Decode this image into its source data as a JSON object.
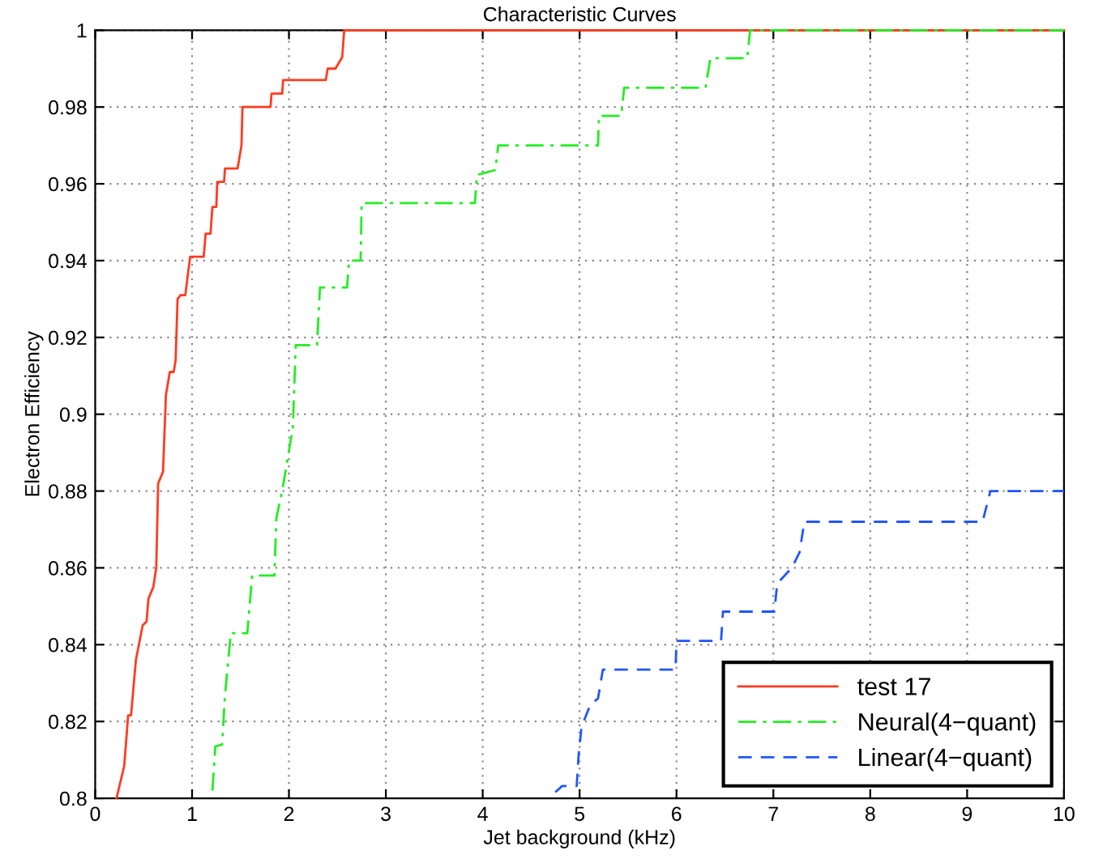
{
  "chart_data": {
    "type": "line",
    "title": "Characteristic Curves",
    "xlabel": "Jet background (kHz)",
    "ylabel": "Electron Efficiency",
    "xlim": [
      0,
      10
    ],
    "xticks": [
      0,
      1,
      2,
      3,
      4,
      5,
      6,
      7,
      8,
      9,
      10
    ],
    "ylim": [
      0.8,
      1
    ],
    "yticks": [
      0.8,
      0.82,
      0.84,
      0.86,
      0.88,
      0.9,
      0.92,
      0.94,
      0.96,
      0.98,
      1
    ],
    "grid": true,
    "legend": "bottom right",
    "marker": "none",
    "series": [
      {
        "name": "test 17",
        "color": "#ff3b1f",
        "line_style": "solid",
        "x": [
          0.22,
          0.3,
          0.34,
          0.37,
          0.42,
          0.49,
          0.53,
          0.55,
          0.6,
          0.63,
          0.65,
          0.7,
          0.73,
          0.77,
          0.81,
          0.83,
          0.85,
          0.88,
          0.93,
          0.98,
          1.12,
          1.14,
          1.19,
          1.21,
          1.25,
          1.26,
          1.33,
          1.34,
          1.47,
          1.49,
          1.51,
          1.52,
          1.81,
          1.82,
          1.93,
          1.94,
          2.38,
          2.4,
          2.48,
          2.55,
          2.57,
          10
        ],
        "values": [
          0.8,
          0.8085,
          0.8216,
          0.8216,
          0.836,
          0.845,
          0.846,
          0.852,
          0.855,
          0.86,
          0.882,
          0.885,
          0.905,
          0.911,
          0.911,
          0.914,
          0.93,
          0.931,
          0.931,
          0.941,
          0.941,
          0.947,
          0.947,
          0.954,
          0.954,
          0.9605,
          0.9605,
          0.964,
          0.964,
          0.967,
          0.97,
          0.98,
          0.98,
          0.9835,
          0.9835,
          0.987,
          0.987,
          0.99,
          0.99,
          0.993,
          1,
          1
        ]
      },
      {
        "name": "Neural(4−quant)",
        "color": "#22ee22",
        "line_style": "dashdot",
        "x": [
          1.21,
          1.24,
          1.31,
          1.34,
          1.4,
          1.57,
          1.62,
          1.85,
          1.87,
          1.93,
          1.99,
          2.04,
          2.07,
          2.29,
          2.32,
          2.6,
          2.62,
          2.74,
          2.75,
          3.92,
          3.94,
          4.13,
          4.16,
          5.19,
          5.2,
          5.43,
          5.46,
          6.3,
          6.35,
          6.73,
          6.76,
          10
        ],
        "values": [
          0.802,
          0.8135,
          0.814,
          0.827,
          0.843,
          0.843,
          0.858,
          0.858,
          0.873,
          0.88,
          0.889,
          0.8966,
          0.918,
          0.918,
          0.933,
          0.933,
          0.94,
          0.94,
          0.955,
          0.955,
          0.9623,
          0.9636,
          0.97,
          0.97,
          0.9777,
          0.9777,
          0.985,
          0.985,
          0.9927,
          0.9927,
          1,
          1
        ]
      },
      {
        "name": "Linear(4−quant)",
        "color": "#2255ff",
        "line_style": "dashed",
        "x": [
          4.75,
          4.82,
          4.97,
          4.99,
          5.02,
          5.11,
          5.19,
          5.24,
          5.99,
          6.0,
          6.46,
          6.48,
          7.01,
          7.04,
          7.19,
          7.27,
          7.32,
          9.16,
          9.24,
          10
        ],
        "values": [
          0.8016,
          0.8032,
          0.8032,
          0.8113,
          0.8186,
          0.8243,
          0.826,
          0.8335,
          0.8335,
          0.841,
          0.841,
          0.8486,
          0.8486,
          0.8559,
          0.86,
          0.864,
          0.872,
          0.872,
          0.88,
          0.88
        ]
      }
    ]
  }
}
